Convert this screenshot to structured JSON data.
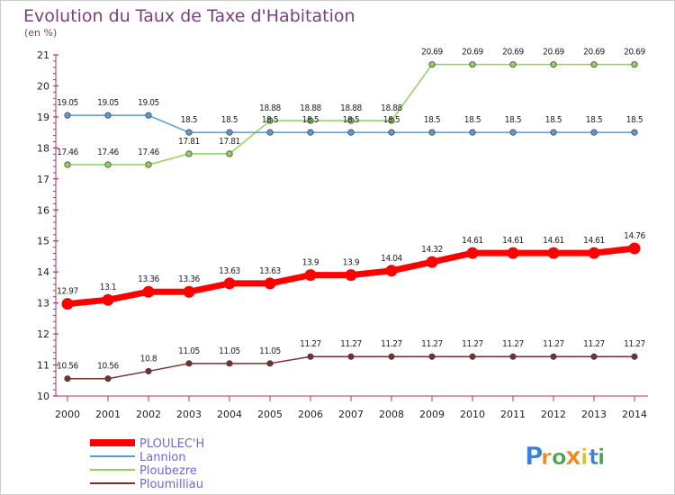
{
  "chart_data": {
    "type": "line",
    "title": "Evolution du Taux de Taxe d'Habitation",
    "subtitle": "(en %)",
    "x": [
      "2000",
      "2001",
      "2002",
      "2003",
      "2004",
      "2005",
      "2006",
      "2007",
      "2008",
      "2009",
      "2010",
      "2011",
      "2012",
      "2013",
      "2014"
    ],
    "ylim": [
      10,
      21
    ],
    "yticks": [
      "10",
      "11",
      "12",
      "13",
      "14",
      "15",
      "16",
      "17",
      "18",
      "19",
      "20",
      "21"
    ],
    "grid": false,
    "legend_position": "bottom-left",
    "series": [
      {
        "name": "PLOULEC'H",
        "color": "#ff0000",
        "values": [
          12.97,
          13.1,
          13.36,
          13.36,
          13.63,
          13.63,
          13.9,
          13.9,
          14.04,
          14.32,
          14.61,
          14.61,
          14.61,
          14.61,
          14.76
        ],
        "labels": [
          "12.97",
          "13.1",
          "13.36",
          "13.36",
          "13.63",
          "13.63",
          "13.9",
          "13.9",
          "14.04",
          "14.32",
          "14.61",
          "14.61",
          "14.61",
          "14.61",
          "14.76"
        ]
      },
      {
        "name": "Lannion",
        "color": "#5b9bd5",
        "values": [
          19.05,
          19.05,
          19.05,
          18.5,
          18.5,
          18.5,
          18.5,
          18.5,
          18.5,
          18.5,
          18.5,
          18.5,
          18.5,
          18.5,
          18.5
        ],
        "labels": [
          "19.05",
          "19.05",
          "19.05",
          "18.5",
          "18.5",
          "18.5",
          "18.5",
          "18.5",
          "18.5",
          "18.5",
          "18.5",
          "18.5",
          "18.5",
          "18.5",
          "18.5"
        ]
      },
      {
        "name": "Ploubezre",
        "color": "#8fd45a",
        "values": [
          17.46,
          17.46,
          17.46,
          17.81,
          17.81,
          18.88,
          18.88,
          18.88,
          18.88,
          20.69,
          20.69,
          20.69,
          20.69,
          20.69,
          20.69
        ],
        "labels": [
          "17.46",
          "17.46",
          "17.46",
          "17.81",
          "17.81",
          "18.88",
          "18.88",
          "18.88",
          "18.88",
          "20.69",
          "20.69",
          "20.69",
          "20.69",
          "20.69",
          "20.69"
        ]
      },
      {
        "name": "Ploumilliau",
        "color": "#7a2f2f",
        "values": [
          10.56,
          10.56,
          10.8,
          11.05,
          11.05,
          11.05,
          11.27,
          11.27,
          11.27,
          11.27,
          11.27,
          11.27,
          11.27,
          11.27,
          11.27
        ],
        "labels": [
          "10.56",
          "10.56",
          "10.8",
          "11.05",
          "11.05",
          "11.05",
          "11.27",
          "11.27",
          "11.27",
          "11.27",
          "11.27",
          "11.27",
          "11.27",
          "11.27",
          "11.27"
        ]
      }
    ]
  },
  "colors": {
    "title": "#7b3f7f",
    "axis": "#b03060",
    "legend_text": "#6a6ad8"
  },
  "logo": {
    "letters": [
      "P",
      "r",
      "o",
      "x",
      "i",
      "t",
      "i"
    ],
    "colors": [
      "#3b7fd8",
      "#f08a1e",
      "#3fa64a",
      "#f08a1e",
      "#d8c21e",
      "#3b7fd8",
      "#3fa64a"
    ]
  }
}
